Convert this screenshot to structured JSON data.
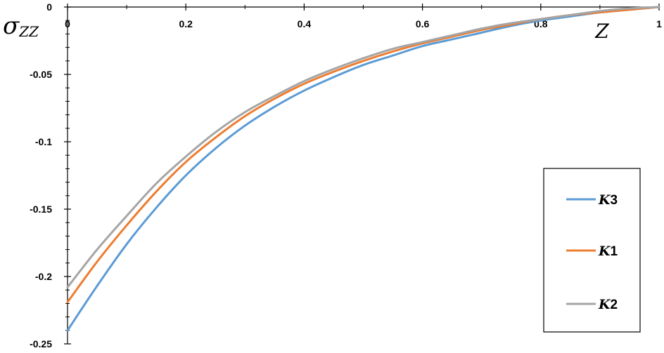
{
  "chart_data": {
    "type": "line",
    "xlabel": "Z",
    "ylabel": "σzz",
    "ylabel_main": "σ",
    "ylabel_sub": "ZZ",
    "xlim": [
      0,
      1
    ],
    "ylim": [
      -0.25,
      0
    ],
    "x_ticks": [
      "0",
      "0.2",
      "0.4",
      "0.6",
      "0.8",
      "1"
    ],
    "y_ticks": [
      "0",
      "-0.05",
      "-0.1",
      "-0.15",
      "-0.2",
      "-0.25"
    ],
    "x_tick_values": [
      0,
      0.2,
      0.4,
      0.6,
      0.8,
      1
    ],
    "y_tick_values": [
      0,
      -0.05,
      -0.1,
      -0.15,
      -0.2,
      -0.25
    ],
    "grid": false,
    "legend_position": "right",
    "x": [
      0,
      0.05,
      0.1,
      0.15,
      0.2,
      0.25,
      0.3,
      0.35,
      0.4,
      0.45,
      0.5,
      0.55,
      0.6,
      0.65,
      0.7,
      0.75,
      0.8,
      0.85,
      0.9,
      0.95,
      1
    ],
    "series": [
      {
        "name": "K3",
        "legend_main": "K",
        "legend_suffix": "3",
        "color": "#5b9bd5",
        "values": [
          -0.24,
          -0.207,
          -0.176,
          -0.149,
          -0.125,
          -0.105,
          -0.088,
          -0.074,
          -0.062,
          -0.052,
          -0.043,
          -0.036,
          -0.029,
          -0.024,
          -0.019,
          -0.014,
          -0.01,
          -0.007,
          -0.004,
          -0.002,
          0
        ]
      },
      {
        "name": "K1",
        "legend_main": "K",
        "legend_suffix": "1",
        "color": "#ed7d31",
        "values": [
          -0.219,
          -0.189,
          -0.162,
          -0.137,
          -0.115,
          -0.097,
          -0.081,
          -0.068,
          -0.057,
          -0.048,
          -0.04,
          -0.033,
          -0.027,
          -0.022,
          -0.017,
          -0.013,
          -0.009,
          -0.006,
          -0.004,
          -0.002,
          0
        ]
      },
      {
        "name": "K2",
        "legend_main": "K",
        "legend_suffix": "2",
        "color": "#a5a5a5",
        "values": [
          -0.208,
          -0.18,
          -0.155,
          -0.131,
          -0.111,
          -0.093,
          -0.078,
          -0.066,
          -0.055,
          -0.046,
          -0.038,
          -0.031,
          -0.026,
          -0.021,
          -0.016,
          -0.012,
          -0.009,
          -0.006,
          -0.003,
          -0.001,
          0
        ]
      }
    ]
  }
}
